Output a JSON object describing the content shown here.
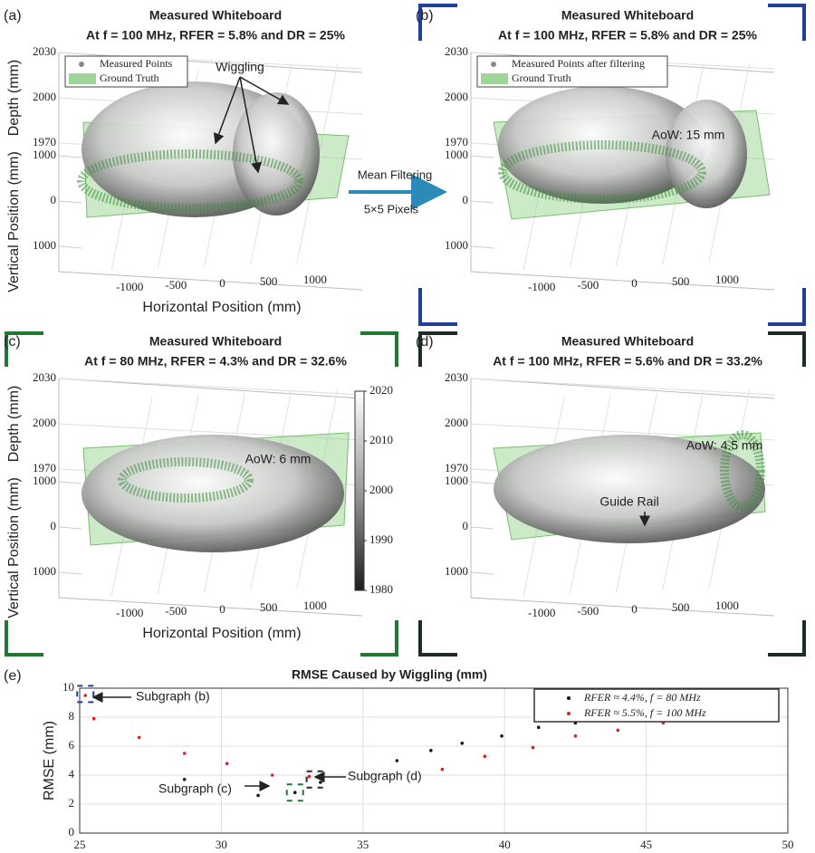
{
  "chart_data": [
    {
      "type": "surface3d",
      "panel": "(a)",
      "title": [
        "Measured Whiteboard",
        "At f = 100 MHz, RFER = 5.8% and DR = 25%"
      ],
      "xlabel": "Horizontal Position (mm)",
      "ylabel": "Vertical Position (mm)",
      "zlabel": "Depth (mm)",
      "xlim": [
        -1500,
        1500
      ],
      "xticks": [
        -1000,
        -500,
        0,
        500,
        1000
      ],
      "ylim": [
        -1200,
        1200
      ],
      "yticks": [
        1000,
        0,
        {
          "value": -1000,
          "label": "1000"
        }
      ],
      "zlim": [
        1970,
        2030
      ],
      "zticks": [
        1970,
        2000,
        2030
      ],
      "series": [
        {
          "name": "Measured Points",
          "color": "#888888"
        },
        {
          "name": "Ground Truth",
          "color": "#9fd49a"
        }
      ],
      "annotations": [
        "Wiggling"
      ]
    },
    {
      "type": "surface3d",
      "panel": "(b)",
      "title": [
        "Measured Whiteboard",
        "At f = 100 MHz, RFER = 5.8% and DR = 25%"
      ],
      "xlim": [
        -1500,
        1500
      ],
      "xticks": [
        -1000,
        -500,
        0,
        500,
        1000
      ],
      "ylim": [
        -1200,
        1200
      ],
      "yticks": [
        1000,
        0,
        {
          "value": -1000,
          "label": "1000"
        }
      ],
      "zlim": [
        1970,
        2030
      ],
      "zticks": [
        1970,
        2000,
        2030
      ],
      "series": [
        {
          "name": "Measured Points after filtering",
          "color": "#888888"
        },
        {
          "name": "Ground Truth",
          "color": "#9fd49a"
        }
      ],
      "annotations": [
        "AoW: 15 mm"
      ]
    },
    {
      "type": "surface3d",
      "panel": "(c)",
      "title": [
        "Measured Whiteboard",
        "At f = 80 MHz, RFER = 4.3% and DR = 32.6%"
      ],
      "xlabel": "Horizontal Position (mm)",
      "ylabel": "Vertical Position (mm)",
      "zlabel": "Depth (mm)",
      "xlim": [
        -1500,
        1500
      ],
      "xticks": [
        -1000,
        -500,
        0,
        500,
        1000
      ],
      "ylim": [
        -1200,
        1200
      ],
      "yticks": [
        1000,
        0,
        {
          "value": -1000,
          "label": "1000"
        }
      ],
      "zlim": [
        1970,
        2030
      ],
      "zticks": [
        1970,
        2000,
        2030
      ],
      "clim": [
        1980,
        2020
      ],
      "cticks": [
        1980,
        1990,
        2000,
        2010,
        2020
      ],
      "annotations": [
        "AoW: 6 mm"
      ]
    },
    {
      "type": "surface3d",
      "panel": "(d)",
      "title": [
        "Measured Whiteboard",
        "At f = 100 MHz, RFER = 5.6% and DR = 33.2%"
      ],
      "xlim": [
        -1500,
        1500
      ],
      "xticks": [
        -1000,
        -500,
        0,
        500,
        1000
      ],
      "ylim": [
        -1200,
        1200
      ],
      "yticks": [
        1000,
        0,
        {
          "value": -1000,
          "label": "1000"
        }
      ],
      "zlim": [
        1970,
        2030
      ],
      "zticks": [
        1970,
        2000,
        2030
      ],
      "annotations": [
        "AoW: 4.5 mm",
        "Guide Rail"
      ]
    },
    {
      "type": "scatter",
      "panel": "(e)",
      "title": "RMSE Caused by Wiggling (mm)",
      "ylabel": "RMSE (mm)",
      "xlim": [
        25,
        50
      ],
      "xticks": [
        25,
        30,
        35,
        40,
        45,
        50
      ],
      "ylim": [
        0,
        10
      ],
      "yticks": [
        0,
        2,
        4,
        6,
        8,
        10
      ],
      "grid": true,
      "series": [
        {
          "name": "RFER ≈ 4.4%, f = 80 MHz",
          "color": "#111111",
          "x": [
            28.7,
            31.3,
            32.6,
            33.5,
            36.2,
            37.4,
            38.5,
            39.9,
            41.2,
            42.5,
            43.6,
            45.6,
            47.3,
            48.8
          ],
          "values": [
            3.7,
            2.6,
            2.8,
            3.5,
            5.0,
            5.7,
            6.2,
            6.7,
            7.3,
            7.6,
            8.6,
            7.7,
            8.6,
            9.4
          ]
        },
        {
          "name": "RFER ≈ 5.5%, f = 100 MHz",
          "color": "#e02020",
          "x": [
            25.2,
            25.5,
            27.1,
            28.7,
            30.2,
            31.8,
            33.1,
            37.8,
            39.3,
            41.0,
            42.5,
            44.0,
            45.6,
            47.3,
            48.8
          ],
          "values": [
            9.5,
            7.9,
            6.6,
            5.5,
            4.8,
            4.0,
            3.9,
            4.4,
            5.3,
            5.9,
            6.7,
            7.1,
            7.6,
            7.9,
            8.0
          ]
        }
      ],
      "annotations": [
        "Subgraph (b)",
        "Subgraph (c)",
        "Subgraph (d)"
      ]
    }
  ],
  "transition": [
    "Mean Filtering",
    "5×5 Pixels"
  ]
}
